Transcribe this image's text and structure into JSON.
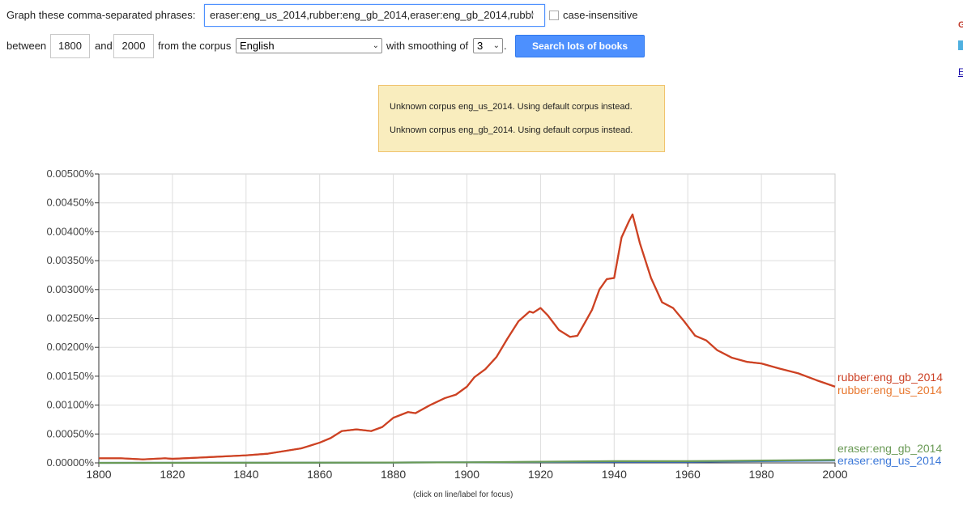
{
  "form": {
    "phrases_label": "Graph these comma-separated phrases:",
    "phrases_value": "eraser:eng_us_2014,rubber:eng_gb_2014,eraser:eng_gb_2014,rubbl",
    "case_insensitive_label": "case-insensitive",
    "between_label": "between",
    "start_year": "1800",
    "and_label": "and",
    "end_year": "2000",
    "corpus_label": "from the corpus",
    "corpus_value": "English",
    "smoothing_label": "with smoothing of",
    "smoothing_value": "3",
    "smoothing_period": ".",
    "search_button": "Search lots of books"
  },
  "notices": [
    "Unknown corpus eng_us_2014. Using default corpus instead.",
    "Unknown corpus eng_gb_2014. Using default corpus instead."
  ],
  "footer_hint": "(click on line/label for focus)",
  "chart_data": {
    "type": "line",
    "x_ticks": [
      1800,
      1820,
      1840,
      1860,
      1880,
      1900,
      1920,
      1940,
      1960,
      1980,
      2000
    ],
    "y_ticks": [
      "0.00000%",
      "0.00050%",
      "0.00100%",
      "0.00150%",
      "0.00200%",
      "0.00250%",
      "0.00300%",
      "0.00350%",
      "0.00400%",
      "0.00450%",
      "0.00500%"
    ],
    "xlim": [
      1800,
      2000
    ],
    "ylim": [
      0,
      0.005
    ],
    "grid": true,
    "series": [
      {
        "name": "rubber:eng_gb_2014",
        "color": "#cc4125",
        "points": [
          [
            1800,
            8e-05
          ],
          [
            1806,
            8e-05
          ],
          [
            1812,
            6e-05
          ],
          [
            1818,
            8e-05
          ],
          [
            1820,
            7e-05
          ],
          [
            1830,
            0.0001
          ],
          [
            1840,
            0.00013
          ],
          [
            1846,
            0.00016
          ],
          [
            1850,
            0.0002
          ],
          [
            1855,
            0.00025
          ],
          [
            1860,
            0.00035
          ],
          [
            1863,
            0.00043
          ],
          [
            1866,
            0.00055
          ],
          [
            1870,
            0.00058
          ],
          [
            1874,
            0.00055
          ],
          [
            1877,
            0.00062
          ],
          [
            1880,
            0.00078
          ],
          [
            1884,
            0.00088
          ],
          [
            1886,
            0.00086
          ],
          [
            1890,
            0.001
          ],
          [
            1894,
            0.00112
          ],
          [
            1897,
            0.00118
          ],
          [
            1900,
            0.00132
          ],
          [
            1902,
            0.00148
          ],
          [
            1905,
            0.00162
          ],
          [
            1908,
            0.00183
          ],
          [
            1911,
            0.00215
          ],
          [
            1914,
            0.00245
          ],
          [
            1917,
            0.00262
          ],
          [
            1918,
            0.0026
          ],
          [
            1920,
            0.00268
          ],
          [
            1922,
            0.00255
          ],
          [
            1925,
            0.0023
          ],
          [
            1928,
            0.00218
          ],
          [
            1930,
            0.0022
          ],
          [
            1932,
            0.00242
          ],
          [
            1934,
            0.00265
          ],
          [
            1936,
            0.003
          ],
          [
            1938,
            0.00318
          ],
          [
            1940,
            0.0032
          ],
          [
            1942,
            0.0039
          ],
          [
            1944,
            0.00418
          ],
          [
            1945,
            0.0043
          ],
          [
            1947,
            0.0038
          ],
          [
            1950,
            0.0032
          ],
          [
            1953,
            0.00278
          ],
          [
            1956,
            0.00268
          ],
          [
            1959,
            0.00245
          ],
          [
            1962,
            0.0022
          ],
          [
            1965,
            0.00212
          ],
          [
            1968,
            0.00195
          ],
          [
            1972,
            0.00182
          ],
          [
            1976,
            0.00175
          ],
          [
            1980,
            0.00172
          ],
          [
            1985,
            0.00163
          ],
          [
            1990,
            0.00155
          ],
          [
            1995,
            0.00143
          ],
          [
            2000,
            0.00132
          ]
        ]
      },
      {
        "name": "rubber:eng_us_2014",
        "color": "#e8772e",
        "points": [
          [
            1800,
            8e-05
          ],
          [
            1806,
            8e-05
          ],
          [
            1812,
            6e-05
          ],
          [
            1818,
            8e-05
          ],
          [
            1820,
            7e-05
          ],
          [
            1830,
            0.0001
          ],
          [
            1840,
            0.00013
          ],
          [
            1846,
            0.00016
          ],
          [
            1850,
            0.0002
          ],
          [
            1855,
            0.00025
          ],
          [
            1860,
            0.00035
          ],
          [
            1863,
            0.00043
          ],
          [
            1866,
            0.00055
          ],
          [
            1870,
            0.00058
          ],
          [
            1874,
            0.00055
          ],
          [
            1877,
            0.00062
          ],
          [
            1880,
            0.00078
          ],
          [
            1884,
            0.00088
          ],
          [
            1886,
            0.00086
          ],
          [
            1890,
            0.001
          ],
          [
            1894,
            0.00112
          ],
          [
            1897,
            0.00118
          ],
          [
            1900,
            0.00132
          ],
          [
            1902,
            0.00148
          ],
          [
            1905,
            0.00162
          ],
          [
            1908,
            0.00183
          ],
          [
            1911,
            0.00215
          ],
          [
            1914,
            0.00245
          ],
          [
            1917,
            0.00262
          ],
          [
            1918,
            0.0026
          ],
          [
            1920,
            0.00268
          ],
          [
            1922,
            0.00255
          ],
          [
            1925,
            0.0023
          ],
          [
            1928,
            0.00218
          ],
          [
            1930,
            0.0022
          ],
          [
            1932,
            0.00242
          ],
          [
            1934,
            0.00265
          ],
          [
            1936,
            0.003
          ],
          [
            1938,
            0.00318
          ],
          [
            1940,
            0.0032
          ],
          [
            1942,
            0.0039
          ],
          [
            1944,
            0.00418
          ],
          [
            1945,
            0.0043
          ],
          [
            1947,
            0.0038
          ],
          [
            1950,
            0.0032
          ],
          [
            1953,
            0.00278
          ],
          [
            1956,
            0.00268
          ],
          [
            1959,
            0.00245
          ],
          [
            1962,
            0.0022
          ],
          [
            1965,
            0.00212
          ],
          [
            1968,
            0.00195
          ],
          [
            1972,
            0.00182
          ],
          [
            1976,
            0.00175
          ],
          [
            1980,
            0.00172
          ],
          [
            1985,
            0.00163
          ],
          [
            1990,
            0.00155
          ],
          [
            1995,
            0.00143
          ],
          [
            2000,
            0.00132
          ]
        ]
      },
      {
        "name": "eraser:eng_gb_2014",
        "color": "#6a9a56",
        "points": [
          [
            1800,
            0.0
          ],
          [
            1880,
            5e-06
          ],
          [
            1900,
            1e-05
          ],
          [
            1940,
            3e-05
          ],
          [
            1960,
            3e-05
          ],
          [
            1980,
            4e-05
          ],
          [
            2000,
            5e-05
          ]
        ]
      },
      {
        "name": "eraser:eng_us_2014",
        "color": "#3c78d8",
        "points": [
          [
            1800,
            0.0
          ],
          [
            1880,
            5e-06
          ],
          [
            1900,
            1e-05
          ],
          [
            1940,
            2e-05
          ],
          [
            1960,
            2e-05
          ],
          [
            1980,
            3e-05
          ],
          [
            2000,
            4e-05
          ]
        ]
      }
    ]
  }
}
